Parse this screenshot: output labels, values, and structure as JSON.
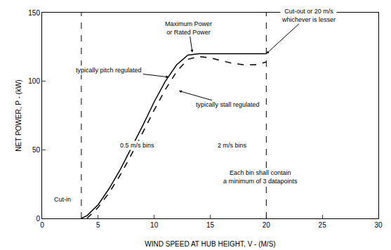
{
  "chart_data": {
    "type": "line",
    "x_label": "WIND SPEED AT HUB HEIGHT, V - (M/S)",
    "y_label": "NET POWER, P - (kW)",
    "xlim": [
      0,
      30
    ],
    "xticks": [
      0,
      5,
      10,
      15,
      20,
      25,
      30
    ],
    "ylim": [
      0,
      150
    ],
    "yticks": [
      0,
      50,
      100,
      150
    ],
    "grid": false,
    "series": [
      {
        "name": "typically pitch regulated",
        "color": "#000000",
        "line_style": "solid",
        "x": [
          3.5,
          4,
          5,
          6,
          7,
          8,
          9,
          10,
          11,
          12,
          13,
          14,
          15,
          16,
          17,
          18,
          19,
          20
        ],
        "values": [
          0,
          2,
          10,
          22,
          36,
          52,
          68,
          85,
          100,
          112,
          119,
          120,
          120,
          120,
          120,
          120,
          120,
          120
        ]
      },
      {
        "name": "typically stall regulated",
        "color": "#000000",
        "line_style": "dash",
        "x": [
          4,
          5,
          6,
          7,
          8,
          9,
          10,
          11,
          12,
          13,
          14,
          15,
          16,
          17,
          18,
          19,
          20
        ],
        "values": [
          0,
          8,
          19,
          32,
          47,
          63,
          79,
          94,
          107,
          116,
          118,
          117,
          115,
          113,
          112,
          112,
          114
        ]
      }
    ],
    "vlines": [
      3.5,
      20
    ],
    "annotations": {
      "rated": [
        "Maximum Power",
        "or Rated Power"
      ],
      "pitch": "typically pitch regulated",
      "stall": "typically stall regulated",
      "cutout": [
        "Cut-out or 20 m/s",
        "whichever is lesser"
      ],
      "cutin": "Cut-in",
      "bins_fine": "0.5 m/s bins",
      "bins_coarse": "2 m/s bins",
      "datapoints": [
        "Each bin shall contain",
        "a minimum of 3 datapoints"
      ]
    }
  }
}
